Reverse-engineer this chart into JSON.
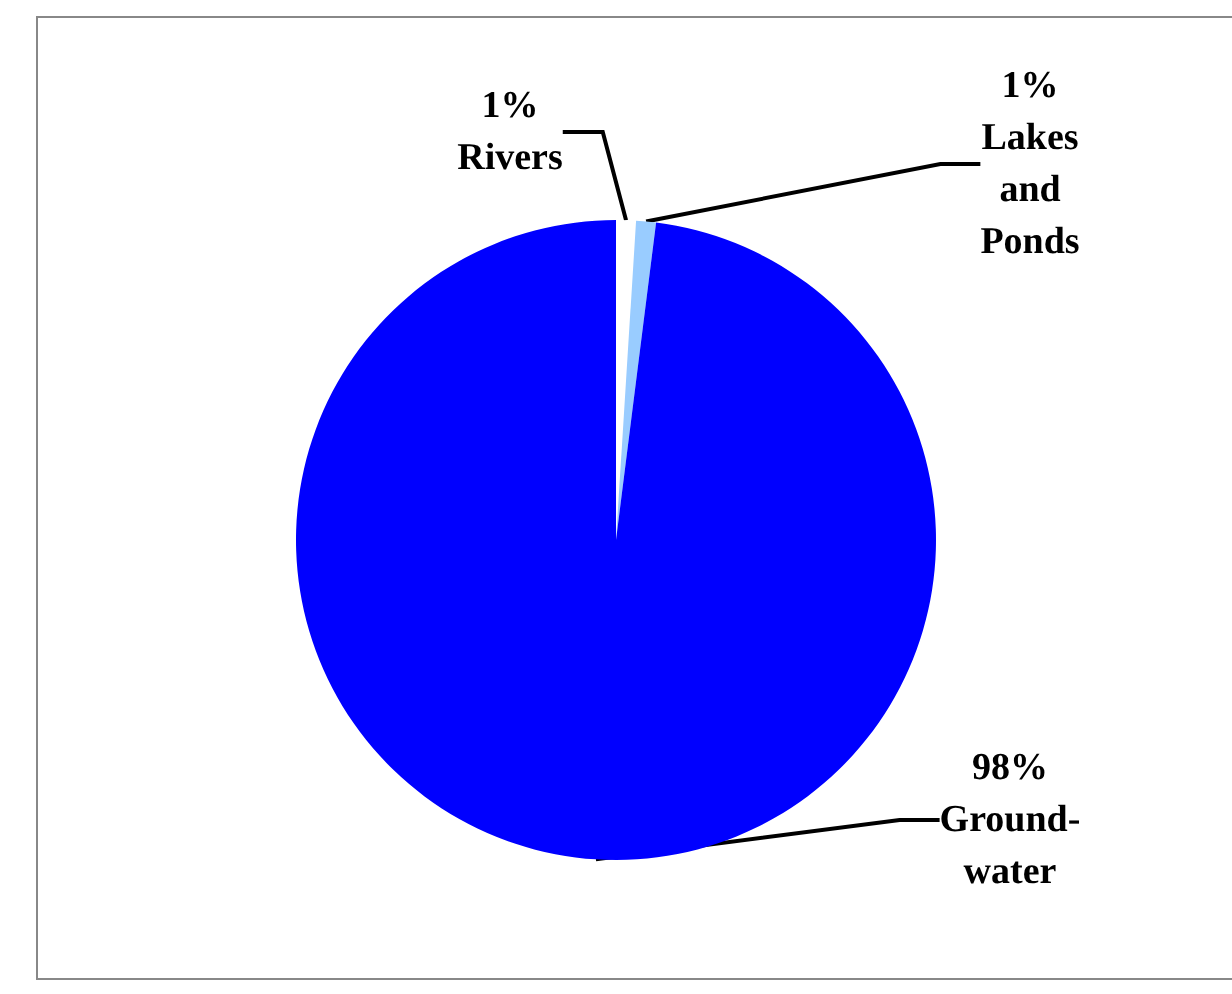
{
  "chart_data": {
    "type": "pie",
    "categories": [
      "Rivers",
      "Lakes and Ponds",
      "Ground-water"
    ],
    "values": [
      1,
      1,
      98
    ],
    "value_labels": [
      "1%",
      "1%",
      "98%"
    ],
    "colors": [
      "#ffffff",
      "#99ccff",
      "#0000ff"
    ],
    "legend": false
  }
}
